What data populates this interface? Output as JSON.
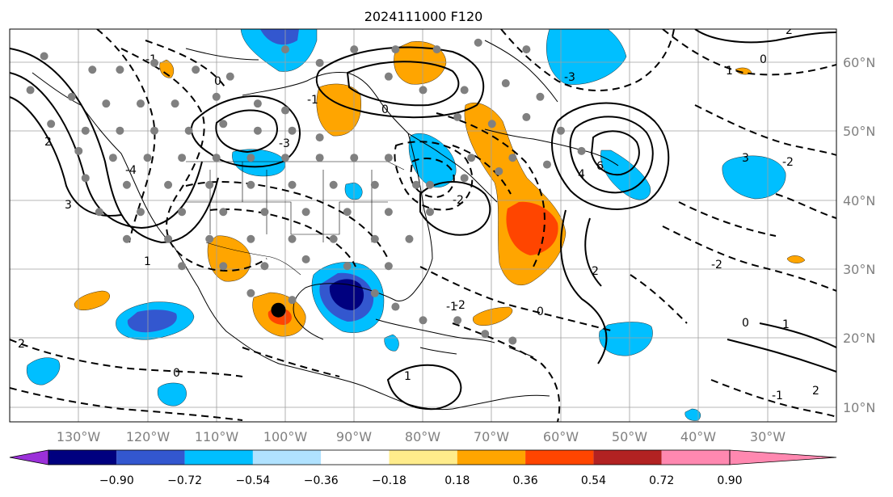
{
  "title": "2024111000 F120",
  "map": {
    "lon_ticks": [
      "130°W",
      "120°W",
      "110°W",
      "100°W",
      "90°W",
      "80°W",
      "70°W",
      "60°W",
      "50°W",
      "40°W",
      "30°W"
    ],
    "lat_ticks": [
      "60°N",
      "50°N",
      "40°N",
      "30°N",
      "20°N",
      "10°N"
    ],
    "lon_range": [
      -135,
      -15
    ],
    "lat_range": [
      7,
      65
    ],
    "marker": {
      "lon": -96,
      "lat": 23.5
    }
  },
  "colorbar": {
    "tick_labels": [
      "−0.90",
      "−0.72",
      "−0.54",
      "−0.36",
      "−0.18",
      "0.18",
      "0.36",
      "0.54",
      "0.72",
      "0.90"
    ],
    "colors": [
      "#9b30d9",
      "#00007f",
      "#3357cf",
      "#00bfff",
      "#b0e2ff",
      "#ffffff",
      "#ffec8b",
      "#ffa500",
      "#ff4500",
      "#b22222",
      "#ff88b0"
    ]
  },
  "contour_labels": [
    "0",
    "-1",
    "2",
    "-3",
    "-4",
    "3",
    "1",
    "-2",
    "6",
    "4",
    "0",
    "-1",
    "0",
    "1",
    "-1",
    "2",
    "-2",
    "3",
    "-2",
    "0",
    "1",
    "2",
    "-3",
    "0",
    "2",
    "1",
    "-1",
    "0",
    "2",
    "-2"
  ]
}
